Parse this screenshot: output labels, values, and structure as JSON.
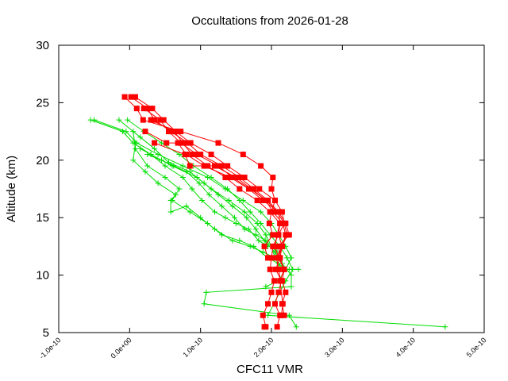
{
  "chart_data": {
    "type": "line",
    "title": "Occultations from 2026-01-28",
    "xlabel": "CFC11 VMR",
    "ylabel": "Altitude (km)",
    "xlim": [
      -1e-10,
      5e-10
    ],
    "ylim": [
      5,
      30
    ],
    "xticks": [
      -1e-10,
      0,
      1e-10,
      2e-10,
      3e-10,
      4e-10,
      5e-10
    ],
    "xtick_labels": [
      "-1.0e-10",
      "0.0e+00",
      "1.0e-10",
      "2.0e-10",
      "3.0e-10",
      "4.0e-10",
      "5.0e-10"
    ],
    "yticks": [
      5,
      10,
      15,
      20,
      25,
      30
    ],
    "ytick_labels": [
      "5",
      "10",
      "15",
      "20",
      "25",
      "30"
    ],
    "grid": false,
    "colors": {
      "red": "#ff0000",
      "green": "#00dd00",
      "axis": "#000000"
    },
    "series": [
      {
        "name": "red-1",
        "color": "#ff0000",
        "marker": "square",
        "x": [
          -7e-12,
          1e-11,
          1.9e-11,
          7.2e-11,
          1.25e-10,
          1.6e-10,
          1.85e-10,
          2.02e-10,
          2e-10,
          2.05e-10,
          2e-10,
          1.97e-10,
          2.02e-10,
          1.9e-10,
          1.95e-10
        ],
        "y": [
          25.5,
          24.5,
          23.5,
          22.5,
          21.5,
          20.5,
          19.5,
          18.5,
          17.5,
          16.5,
          15.5,
          14.5,
          13.5,
          12.5,
          11.5
        ]
      },
      {
        "name": "red-2",
        "color": "#ff0000",
        "marker": "square",
        "x": [
          2e-12,
          2.5e-11,
          3.5e-11,
          5.8e-11,
          8.2e-11,
          1e-10,
          1.3e-10,
          1.55e-10,
          1.75e-10,
          1.95e-10,
          2.1e-10,
          2.12e-10,
          2.08e-10,
          2.05e-10,
          2.1e-10
        ],
        "y": [
          25.5,
          24.5,
          23.5,
          22.5,
          21.5,
          20.5,
          19.5,
          18.5,
          17.5,
          16.5,
          15.5,
          14.5,
          13.5,
          12.5,
          11.5
        ]
      },
      {
        "name": "red-3",
        "color": "#ff0000",
        "marker": "square",
        "x": [
          8e-12,
          3.2e-11,
          4.8e-11,
          6.5e-11,
          8.6e-11,
          1.15e-10,
          1.38e-10,
          1.62e-10,
          1.83e-10,
          2.05e-10,
          2.15e-10,
          2.18e-10,
          2.1e-10,
          2.15e-10,
          2.07e-10,
          2.1e-10,
          2.13e-10
        ],
        "y": [
          25.5,
          24.5,
          23.5,
          22.5,
          21.5,
          20.5,
          19.5,
          18.5,
          17.5,
          16.5,
          15.5,
          14.5,
          13.5,
          12.5,
          11.5,
          10.5,
          9.5
        ]
      },
      {
        "name": "red-4",
        "color": "#ff0000",
        "marker": "square",
        "x": [
          2e-11,
          4.3e-11,
          5.5e-11,
          7.2e-11,
          9.5e-11,
          1.25e-10,
          1.45e-10,
          1.7e-10,
          1.93e-10,
          2.08e-10,
          2.18e-10,
          2.22e-10,
          2.15e-10,
          2.12e-10,
          2.06e-10,
          2.14e-10,
          2.1e-10,
          2.05e-10,
          2.12e-10,
          2.08e-10
        ],
        "y": [
          24.5,
          23.5,
          22.5,
          21.5,
          20.5,
          19.5,
          18.5,
          17.5,
          16.5,
          15.5,
          14.5,
          13.5,
          12.5,
          11.5,
          10.5,
          9.5,
          8.5,
          7.5,
          6.5,
          5.5
        ]
      },
      {
        "name": "red-5",
        "color": "#ff0000",
        "marker": "square",
        "x": [
          3e-11,
          6.3e-11,
          7.5e-11,
          8.8e-11,
          1.1e-10,
          1.35e-10,
          1.55e-10,
          1.8e-10,
          1.98e-10,
          2.12e-10,
          2.1e-10,
          2.02e-10,
          2e-10,
          1.98e-10,
          2.04e-10,
          2e-10,
          1.95e-10,
          1.88e-10,
          1.92e-10,
          1.9e-10
        ],
        "y": [
          23.5,
          22.5,
          21.5,
          20.5,
          19.5,
          18.5,
          17.5,
          16.5,
          15.5,
          14.5,
          13.5,
          12.5,
          11.5,
          10.5,
          9.5,
          8.5,
          7.5,
          6.5,
          5.5,
          5.5
        ]
      },
      {
        "name": "red-6",
        "color": "#ff0000",
        "marker": "square",
        "x": [
          2.2e-11,
          5.2e-11,
          6.8e-11,
          8e-11,
          1.05e-10,
          1.42e-10,
          1.68e-10,
          1.88e-10,
          2.1e-10,
          2.2e-10,
          2.25e-10,
          2.1e-10,
          2.12e-10,
          2.18e-10,
          2.15e-10,
          2.2e-10,
          2.15e-10,
          2.18e-10
        ],
        "y": [
          22.5,
          21.5,
          21.5,
          20.5,
          19.5,
          18.5,
          17.5,
          16.5,
          15.5,
          14.5,
          13.5,
          12.5,
          11.5,
          10.5,
          9.5,
          8.5,
          7.5,
          6.5
        ]
      },
      {
        "name": "red-7",
        "color": "#ff0000",
        "marker": "square",
        "x": [
          3.5e-11,
          7.8e-11,
          8.5e-11,
          1.2e-10,
          1.5e-10,
          1.72e-10,
          1.92e-10,
          2.02e-10,
          2.16e-10,
          2.2e-10,
          2.15e-10,
          2.1e-10,
          2.18e-10,
          2.12e-10,
          2.16e-10,
          2.14e-10
        ],
        "y": [
          21.5,
          20.5,
          19.5,
          19.5,
          18.5,
          17.5,
          16.5,
          15.5,
          14.5,
          13.5,
          12.5,
          11.5,
          10.5,
          9.5,
          7.5,
          6.5
        ]
      },
      {
        "name": "green-1",
        "color": "#00dd00",
        "marker": "plus",
        "x": [
          -5.5e-11,
          -1e-11,
          5e-12,
          3e-11,
          6e-11,
          9.5e-11,
          1.15e-10,
          1.4e-10,
          1.62e-10,
          1.8e-10,
          1.92e-10,
          2e-10,
          2.05e-10,
          2.15e-10,
          2.25e-10,
          2.38e-10
        ],
        "y": [
          23.5,
          22.5,
          21.5,
          20.5,
          19.5,
          18.5,
          17.5,
          16.5,
          15.5,
          14.5,
          13.5,
          12.5,
          11.5,
          10.5,
          10.5,
          10.5
        ]
      },
      {
        "name": "green-2",
        "color": "#00dd00",
        "marker": "plus",
        "x": [
          -5e-11,
          -5e-12,
          1e-11,
          4e-11,
          7.5e-11,
          1.1e-10,
          1.35e-10,
          1.6e-10,
          1.85e-10,
          2e-10,
          2.1e-10,
          2.2e-10,
          2.28e-10,
          2.2e-10,
          2.1e-10,
          1.92e-10
        ],
        "y": [
          23.5,
          22.5,
          21.5,
          20.5,
          19.5,
          18.5,
          17.5,
          16.5,
          15.5,
          14.5,
          13.5,
          12.5,
          11.5,
          10.5,
          9.5,
          9.0
        ]
      },
      {
        "name": "green-3",
        "color": "#00dd00",
        "marker": "plus",
        "x": [
          -1.5e-11,
          1.5e-11,
          3.5e-11,
          5.5e-11,
          8.5e-11,
          1.05e-10,
          1.25e-10,
          1.45e-10,
          1.65e-10,
          1.78e-10,
          1.9e-10,
          2.05e-10,
          2.15e-10,
          2.28e-10,
          2.28e-10,
          1.08e-10,
          1.05e-10,
          2.25e-10,
          2.35e-10
        ],
        "y": [
          23.5,
          22.0,
          21.0,
          19.8,
          19.0,
          18.0,
          17.0,
          16.0,
          15.0,
          14.0,
          13.0,
          12.0,
          11.0,
          10.0,
          9.0,
          8.5,
          7.5,
          6.5,
          5.5
        ]
      },
      {
        "name": "green-4",
        "color": "#00dd00",
        "marker": "plus",
        "x": [
          -3e-12,
          2e-11,
          4.5e-11,
          7e-11,
          9e-11,
          1.15e-10,
          1.38e-10,
          1.55e-10,
          1.7e-10,
          1.85e-10,
          1.98e-10,
          2.12e-10,
          2.22e-10,
          2.3e-10,
          2.2e-10,
          1.95e-10,
          4.45e-10
        ],
        "y": [
          23.5,
          22.5,
          21.5,
          20.5,
          19.5,
          18.5,
          17.5,
          16.5,
          15.5,
          14.5,
          13.5,
          12.5,
          11.5,
          10.5,
          9.5,
          6.5,
          5.5
        ]
      },
      {
        "name": "green-5",
        "color": "#00dd00",
        "marker": "plus",
        "x": [
          5e-12,
          8e-12,
          2.5e-11,
          5e-11,
          7e-11,
          6e-11,
          8.5e-11,
          1.1e-10,
          1.3e-10,
          1.55e-10,
          1.75e-10,
          1.95e-10,
          2.1e-10,
          2.2e-10
        ],
        "y": [
          22.5,
          21.0,
          19.5,
          18.5,
          17.5,
          16.5,
          15.5,
          14.5,
          13.5,
          13.0,
          12.5,
          11.5,
          11.0,
          10.5
        ]
      },
      {
        "name": "green-6",
        "color": "#00dd00",
        "marker": "plus",
        "x": [
          8e-12,
          5e-12,
          2.2e-11,
          4e-11,
          6.5e-11,
          5.8e-11,
          5.8e-11,
          8e-11,
          1e-10,
          1.2e-10,
          1.45e-10,
          1.7e-10,
          1.88e-10,
          2.05e-10
        ],
        "y": [
          21.5,
          20.0,
          19.0,
          18.0,
          17.0,
          16.5,
          15.5,
          16.0,
          15.0,
          14.0,
          13.0,
          12.5,
          12.0,
          11.5
        ]
      },
      {
        "name": "green-7",
        "color": "#00dd00",
        "marker": "plus",
        "x": [
          1.5e-11,
          3e-11,
          5e-11,
          7.5e-11,
          8.8e-11,
          1.02e-10,
          1.2e-10,
          1.35e-10,
          1.5e-10,
          1.68e-10,
          1.82e-10,
          1.95e-10
        ],
        "y": [
          21.0,
          20.5,
          19.5,
          18.5,
          17.5,
          16.5,
          15.5,
          15.0,
          14.5,
          14.0,
          13.0,
          12.5
        ]
      },
      {
        "name": "green-8",
        "color": "#00dd00",
        "marker": "plus",
        "x": [
          2.5e-11,
          4.5e-11,
          6.2e-11,
          8e-11,
          9.8e-11,
          1.12e-10,
          1.3e-10,
          1.48e-10,
          1.62e-10,
          1.78e-10,
          1.92e-10,
          2.08e-10
        ],
        "y": [
          20.5,
          20.0,
          19.5,
          19.0,
          18.0,
          17.0,
          16.0,
          15.0,
          14.0,
          13.5,
          13.0,
          12.0
        ]
      }
    ]
  }
}
